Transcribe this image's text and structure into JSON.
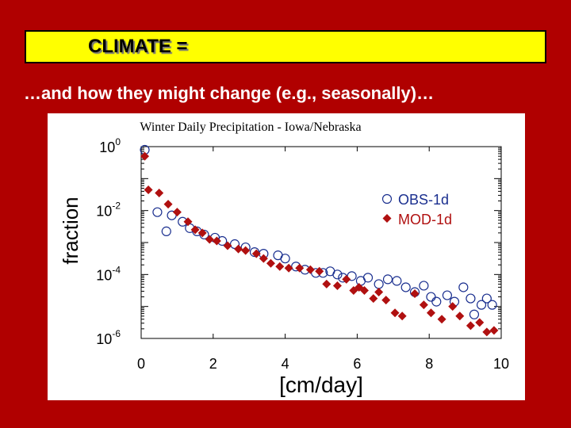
{
  "slide": {
    "title": "CLIMATE =",
    "subtitle": "…and how they might change (e.g., seasonally)…"
  },
  "colors": {
    "background": "#b00000",
    "title_box": "#ffff00",
    "obs": "#1a2f8f",
    "mod": "#b01010"
  },
  "chart_data": {
    "type": "scatter",
    "title": "Winter Daily Precipitation - Iowa/Nebraska",
    "xlabel": "[cm/day]",
    "ylabel": "fraction",
    "xlim": [
      0,
      10
    ],
    "ylim_log10": [
      -6,
      0
    ],
    "x_ticks": [
      "0",
      "2",
      "4",
      "6",
      "8",
      "10"
    ],
    "y_ticks": [
      {
        "base": "10",
        "exp": "0",
        "log10": 0
      },
      {
        "base": "10",
        "exp": "-2",
        "log10": -2
      },
      {
        "base": "10",
        "exp": "-4",
        "log10": -4
      },
      {
        "base": "10",
        "exp": "-6",
        "log10": -6
      }
    ],
    "legend_position": "right",
    "series": [
      {
        "name": "OBS-1d",
        "marker": "open-circle",
        "points": [
          [
            0.1,
            -0.1
          ],
          [
            0.45,
            -2.05
          ],
          [
            0.7,
            -2.65
          ],
          [
            0.85,
            -2.15
          ],
          [
            1.15,
            -2.35
          ],
          [
            1.35,
            -2.55
          ],
          [
            1.55,
            -2.65
          ],
          [
            1.75,
            -2.75
          ],
          [
            2.05,
            -2.85
          ],
          [
            2.25,
            -2.95
          ],
          [
            2.6,
            -3.05
          ],
          [
            2.9,
            -3.15
          ],
          [
            3.15,
            -3.3
          ],
          [
            3.4,
            -3.35
          ],
          [
            3.8,
            -3.4
          ],
          [
            4.0,
            -3.5
          ],
          [
            4.3,
            -3.75
          ],
          [
            4.55,
            -3.85
          ],
          [
            4.85,
            -3.95
          ],
          [
            5.05,
            -3.95
          ],
          [
            5.25,
            -3.9
          ],
          [
            5.45,
            -4.0
          ],
          [
            5.6,
            -4.1
          ],
          [
            5.85,
            -4.05
          ],
          [
            6.1,
            -4.2
          ],
          [
            6.3,
            -4.1
          ],
          [
            6.6,
            -4.3
          ],
          [
            6.85,
            -4.15
          ],
          [
            7.1,
            -4.2
          ],
          [
            7.35,
            -4.4
          ],
          [
            7.6,
            -4.55
          ],
          [
            7.85,
            -4.35
          ],
          [
            8.05,
            -4.7
          ],
          [
            8.2,
            -4.85
          ],
          [
            8.5,
            -4.65
          ],
          [
            8.7,
            -4.85
          ],
          [
            8.95,
            -4.4
          ],
          [
            9.15,
            -4.75
          ],
          [
            9.25,
            -5.25
          ],
          [
            9.45,
            -4.95
          ],
          [
            9.6,
            -4.75
          ],
          [
            9.75,
            -4.95
          ]
        ]
      },
      {
        "name": "MOD-1d",
        "marker": "filled-diamond",
        "points": [
          [
            0.1,
            -0.3
          ],
          [
            0.2,
            -1.35
          ],
          [
            0.5,
            -1.45
          ],
          [
            0.75,
            -1.8
          ],
          [
            1.0,
            -2.05
          ],
          [
            1.3,
            -2.35
          ],
          [
            1.5,
            -2.6
          ],
          [
            1.7,
            -2.7
          ],
          [
            1.9,
            -2.9
          ],
          [
            2.1,
            -2.95
          ],
          [
            2.4,
            -3.1
          ],
          [
            2.7,
            -3.2
          ],
          [
            2.9,
            -3.25
          ],
          [
            3.2,
            -3.35
          ],
          [
            3.4,
            -3.5
          ],
          [
            3.6,
            -3.65
          ],
          [
            3.85,
            -3.75
          ],
          [
            4.1,
            -3.8
          ],
          [
            4.4,
            -3.8
          ],
          [
            4.7,
            -3.85
          ],
          [
            4.95,
            -3.9
          ],
          [
            5.15,
            -4.3
          ],
          [
            5.45,
            -4.35
          ],
          [
            5.7,
            -4.15
          ],
          [
            5.9,
            -4.5
          ],
          [
            6.05,
            -4.4
          ],
          [
            6.2,
            -4.5
          ],
          [
            6.45,
            -4.75
          ],
          [
            6.6,
            -4.55
          ],
          [
            6.8,
            -4.8
          ],
          [
            7.05,
            -5.2
          ],
          [
            7.25,
            -5.3
          ],
          [
            7.6,
            -4.6
          ],
          [
            7.85,
            -4.95
          ],
          [
            8.05,
            -5.2
          ],
          [
            8.35,
            -5.4
          ],
          [
            8.65,
            -5.0
          ],
          [
            8.85,
            -5.3
          ],
          [
            9.15,
            -5.6
          ],
          [
            9.4,
            -5.5
          ],
          [
            9.6,
            -5.8
          ],
          [
            9.8,
            -5.75
          ]
        ]
      }
    ]
  }
}
